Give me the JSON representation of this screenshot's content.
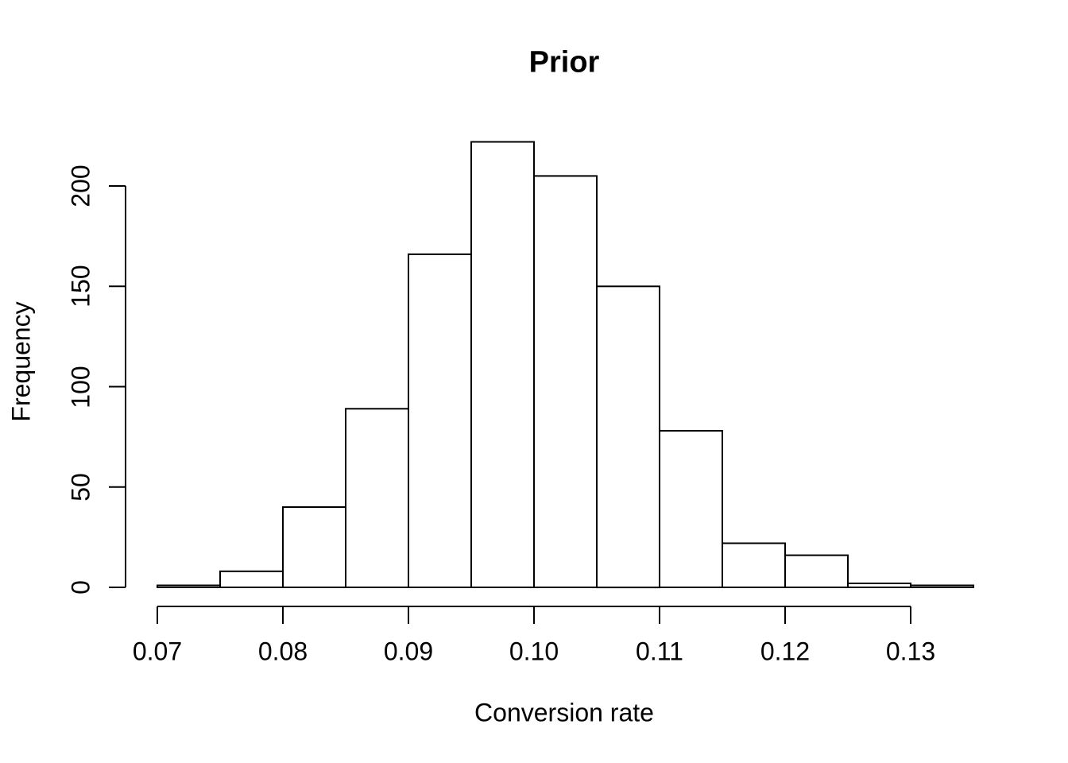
{
  "chart_data": {
    "type": "bar",
    "subtype": "histogram",
    "title": "Prior",
    "xlabel": "Conversion rate",
    "ylabel": "Frequency",
    "bin_start": 0.07,
    "bin_width": 0.005,
    "counts": [
      1,
      8,
      40,
      89,
      166,
      222,
      205,
      150,
      78,
      22,
      16,
      2,
      1
    ],
    "x_tick_labels": [
      "0.07",
      "0.08",
      "0.09",
      "0.10",
      "0.11",
      "0.12",
      "0.13"
    ],
    "x_tick_values": [
      0.07,
      0.08,
      0.09,
      0.1,
      0.11,
      0.12,
      0.13
    ],
    "y_tick_labels": [
      "0",
      "50",
      "100",
      "150",
      "200"
    ],
    "y_tick_values": [
      0,
      50,
      100,
      150,
      200
    ],
    "xlim": [
      0.07,
      0.135
    ],
    "ylim": [
      0,
      200
    ],
    "grid": false,
    "legend": null,
    "bar_fill": "#ffffff",
    "bar_stroke": "#000000",
    "axis_color": "#000000",
    "text_color": "#000000",
    "background": "#ffffff"
  }
}
